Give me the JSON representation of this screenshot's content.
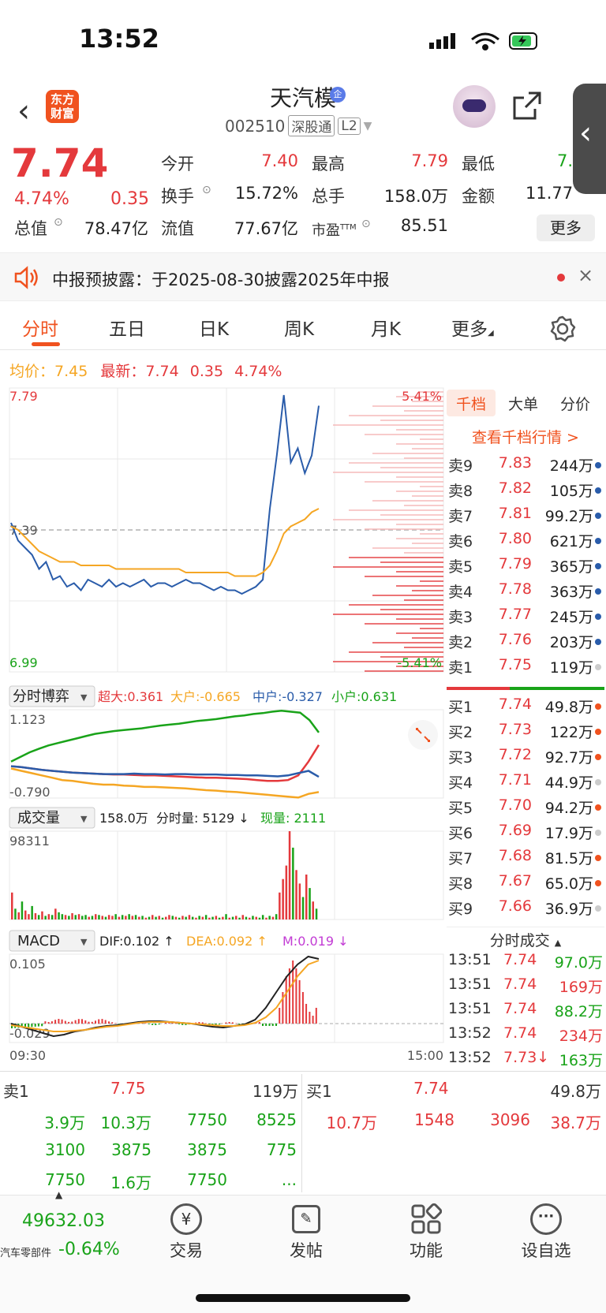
{
  "status_bar": {
    "time": "13:52"
  },
  "header": {
    "logo_text": "东方财富",
    "stock_name": "天汽模",
    "badge": "企",
    "code": "002510",
    "tag1": "深股通",
    "tag2": "L2"
  },
  "quote": {
    "price": "7.74",
    "change_pct": "4.74%",
    "change": "0.35",
    "fields": [
      {
        "label": "今开",
        "value": "7.40",
        "color": "red"
      },
      {
        "label": "最高",
        "value": "7.79",
        "color": "red"
      },
      {
        "label": "最低",
        "value": "7.",
        "color": "green"
      },
      {
        "label": "换手",
        "value": "15.72%",
        "color": "black"
      },
      {
        "label": "总手",
        "value": "158.0万",
        "color": "black"
      },
      {
        "label": "金额",
        "value": "11.77",
        "color": "black"
      },
      {
        "label": "总值",
        "value": "78.47亿",
        "color": "black"
      },
      {
        "label": "流值",
        "value": "77.67亿",
        "color": "black"
      },
      {
        "label": "市盈",
        "sup": "TTM",
        "value": "85.51",
        "color": "black"
      }
    ],
    "more_label": "更多"
  },
  "notice": {
    "text": "中报预披露：于2025-08-30披露2025年中报"
  },
  "tabs": [
    {
      "label": "分时",
      "active": true
    },
    {
      "label": "五日"
    },
    {
      "label": "日K"
    },
    {
      "label": "周K"
    },
    {
      "label": "月K"
    },
    {
      "label": "更多"
    }
  ],
  "avg_row": {
    "avg_label": "均价：",
    "avg_value": "7.45",
    "last_label": "最新：",
    "last_value": "7.74",
    "change": "0.35",
    "change_pct": "4.74%"
  },
  "chart_data": [
    {
      "type": "line",
      "title": "分时",
      "y_max_label": "7.79",
      "y_min_label": "6.99",
      "y_mid_label": "7.39",
      "pct_max_label": "5.41%",
      "pct_min_label": "-5.41%",
      "ylim": [
        6.99,
        7.79
      ],
      "prev_close": 7.39,
      "series": [
        {
          "color": "#2a5caa",
          "values": [
            7.41,
            7.36,
            7.34,
            7.32,
            7.28,
            7.3,
            7.25,
            7.26,
            7.23,
            7.24,
            7.22,
            7.25,
            7.24,
            7.23,
            7.25,
            7.23,
            7.24,
            7.23,
            7.24,
            7.25,
            7.23,
            7.24,
            7.24,
            7.23,
            7.24,
            7.25,
            7.24,
            7.24,
            7.23,
            7.22,
            7.23,
            7.22,
            7.22,
            7.21,
            7.22,
            7.23,
            7.25,
            7.45,
            7.6,
            7.77,
            7.58,
            7.62,
            7.55,
            7.6,
            7.74
          ]
        },
        {
          "color": "#f5a623",
          "values": [
            7.4,
            7.39,
            7.37,
            7.35,
            7.33,
            7.32,
            7.31,
            7.3,
            7.3,
            7.3,
            7.29,
            7.29,
            7.29,
            7.29,
            7.29,
            7.28,
            7.28,
            7.28,
            7.28,
            7.28,
            7.28,
            7.28,
            7.28,
            7.28,
            7.28,
            7.27,
            7.27,
            7.27,
            7.27,
            7.27,
            7.27,
            7.27,
            7.26,
            7.26,
            7.26,
            7.26,
            7.27,
            7.29,
            7.33,
            7.38,
            7.4,
            7.41,
            7.42,
            7.44,
            7.45
          ]
        }
      ]
    },
    {
      "type": "line",
      "title": "分时博弈",
      "labels": {
        "super": "超大:0.361",
        "large": "大户:-0.665",
        "mid": "中户:-0.327",
        "small": "小户:0.631"
      },
      "y_max_label": "1.123",
      "y_min_label": "-0.790",
      "ylim": [
        -0.79,
        1.123
      ],
      "series": [
        {
          "name": "小户",
          "color": "#19a319",
          "values": [
            0.0,
            0.1,
            0.2,
            0.28,
            0.35,
            0.4,
            0.45,
            0.5,
            0.55,
            0.6,
            0.63,
            0.66,
            0.68,
            0.7,
            0.72,
            0.75,
            0.78,
            0.8,
            0.82,
            0.85,
            0.88,
            0.9,
            0.92,
            0.95,
            0.98,
            1.0,
            1.03,
            1.05,
            1.08,
            1.1,
            1.08,
            1.06,
            0.9,
            0.63
          ]
        },
        {
          "name": "超大",
          "color": "#e4393c",
          "values": [
            -0.1,
            -0.12,
            -0.15,
            -0.18,
            -0.2,
            -0.22,
            -0.24,
            -0.25,
            -0.26,
            -0.27,
            -0.28,
            -0.28,
            -0.29,
            -0.3,
            -0.3,
            -0.31,
            -0.32,
            -0.33,
            -0.34,
            -0.35,
            -0.35,
            -0.36,
            -0.37,
            -0.38,
            -0.4,
            -0.42,
            -0.42,
            -0.4,
            -0.3,
            0.0,
            0.36
          ]
        },
        {
          "name": "中户",
          "color": "#2a5caa",
          "values": [
            -0.1,
            -0.12,
            -0.15,
            -0.18,
            -0.2,
            -0.22,
            -0.24,
            -0.25,
            -0.26,
            -0.27,
            -0.27,
            -0.27,
            -0.26,
            -0.27,
            -0.27,
            -0.28,
            -0.27,
            -0.27,
            -0.28,
            -0.28,
            -0.28,
            -0.29,
            -0.29,
            -0.3,
            -0.3,
            -0.31,
            -0.32,
            -0.3,
            -0.25,
            -0.2,
            -0.33
          ]
        },
        {
          "name": "大户",
          "color": "#f5a623",
          "values": [
            -0.15,
            -0.2,
            -0.25,
            -0.3,
            -0.35,
            -0.4,
            -0.42,
            -0.45,
            -0.48,
            -0.5,
            -0.5,
            -0.52,
            -0.53,
            -0.55,
            -0.55,
            -0.56,
            -0.57,
            -0.58,
            -0.6,
            -0.62,
            -0.63,
            -0.65,
            -0.66,
            -0.68,
            -0.7,
            -0.72,
            -0.74,
            -0.76,
            -0.78,
            -0.7,
            -0.66
          ]
        }
      ]
    },
    {
      "type": "bar",
      "title": "成交量",
      "labels": {
        "total": "158.0万",
        "minute": "分时量: 5129 ↓",
        "current": "现量: 2111"
      },
      "y_max_label": "98311",
      "ylim": [
        0,
        98311
      ],
      "values": [
        30000,
        12000,
        8000,
        20000,
        10000,
        6000,
        15000,
        7000,
        5000,
        9000,
        4000,
        6000,
        5000,
        12000,
        8000,
        6000,
        5000,
        4000,
        7000,
        5000,
        6000,
        4000,
        5000,
        3000,
        4000,
        6000,
        5000,
        4000,
        3000,
        5000,
        4000,
        6000,
        3000,
        5000,
        4000,
        6000,
        4000,
        5000,
        3000,
        4000,
        2000,
        3000,
        5000,
        3000,
        4000,
        2000,
        3000,
        5000,
        4000,
        3000,
        2000,
        4000,
        3000,
        5000,
        3000,
        2000,
        4000,
        3000,
        5000,
        2000,
        3000,
        4000,
        2000,
        3000,
        6000,
        2000,
        3000,
        4000,
        2000,
        5000,
        3000,
        2000,
        4000,
        3000,
        2000,
        5000,
        2000,
        4000,
        3000,
        6000,
        30000,
        45000,
        60000,
        98311,
        80000,
        55000,
        40000,
        25000,
        50000,
        35000,
        20000,
        12000
      ],
      "colors": [
        "r",
        "g",
        "r",
        "g",
        "r",
        "r",
        "g",
        "r",
        "g",
        "r",
        "g",
        "r",
        "g",
        "r",
        "g",
        "g",
        "r",
        "g",
        "r",
        "g",
        "r",
        "g",
        "g",
        "r",
        "g",
        "r",
        "g",
        "r",
        "g",
        "r",
        "r",
        "g",
        "r",
        "g",
        "r",
        "g",
        "r",
        "g",
        "r",
        "g",
        "r",
        "g",
        "r",
        "g",
        "r",
        "g",
        "r",
        "r",
        "g",
        "r",
        "g",
        "r",
        "g",
        "r",
        "g",
        "r",
        "g",
        "r",
        "g",
        "r",
        "g",
        "r",
        "g",
        "r",
        "g",
        "r",
        "g",
        "r",
        "g",
        "r",
        "g",
        "r",
        "g",
        "r",
        "g",
        "g",
        "r",
        "g",
        "r",
        "g",
        "r",
        "r",
        "r",
        "r",
        "g",
        "r",
        "r",
        "g",
        "r",
        "g",
        "r",
        "g"
      ]
    },
    {
      "type": "bar",
      "title": "MACD",
      "labels": {
        "dif": "DIF:0.102 ↑",
        "dea": "DEA:0.092 ↑",
        "m": "M:0.019 ↓"
      },
      "y_max_label": "0.105",
      "y_min_label": "-0.029",
      "ylim": [
        -0.029,
        0.105
      ],
      "x_start": "09:30",
      "x_end": "15:00"
    }
  ],
  "order_book": {
    "tabs": [
      "千档",
      "大单",
      "分价"
    ],
    "link": "查看千档行情 >",
    "asks": [
      {
        "label": "卖9",
        "price": "7.83",
        "vol": "244万"
      },
      {
        "label": "卖8",
        "price": "7.82",
        "vol": "105万"
      },
      {
        "label": "卖7",
        "price": "7.81",
        "vol": "99.2万"
      },
      {
        "label": "卖6",
        "price": "7.80",
        "vol": "621万"
      },
      {
        "label": "卖5",
        "price": "7.79",
        "vol": "365万"
      },
      {
        "label": "卖4",
        "price": "7.78",
        "vol": "363万"
      },
      {
        "label": "卖3",
        "price": "7.77",
        "vol": "245万"
      },
      {
        "label": "卖2",
        "price": "7.76",
        "vol": "203万"
      },
      {
        "label": "卖1",
        "price": "7.75",
        "vol": "119万"
      }
    ],
    "bids": [
      {
        "label": "买1",
        "price": "7.74",
        "vol": "49.8万"
      },
      {
        "label": "买2",
        "price": "7.73",
        "vol": "122万"
      },
      {
        "label": "买3",
        "price": "7.72",
        "vol": "92.7万"
      },
      {
        "label": "买4",
        "price": "7.71",
        "vol": "44.9万"
      },
      {
        "label": "买5",
        "price": "7.70",
        "vol": "94.2万"
      },
      {
        "label": "买6",
        "price": "7.69",
        "vol": "17.9万"
      },
      {
        "label": "买7",
        "price": "7.68",
        "vol": "81.5万"
      },
      {
        "label": "买8",
        "price": "7.67",
        "vol": "65.0万"
      },
      {
        "label": "买9",
        "price": "7.66",
        "vol": "36.9万"
      }
    ],
    "trades_title": "分时成交",
    "trades": [
      {
        "time": "13:51",
        "price": "7.74",
        "vol": "97.0万",
        "c": "green"
      },
      {
        "time": "13:51",
        "price": "7.74",
        "vol": "169万",
        "c": "red"
      },
      {
        "time": "13:51",
        "price": "7.74",
        "vol": "88.2万",
        "c": "green"
      },
      {
        "time": "13:52",
        "price": "7.74",
        "vol": "234万",
        "c": "red"
      },
      {
        "time": "13:52",
        "price": "7.73↓",
        "vol": "163万",
        "c": "green"
      }
    ]
  },
  "l2": {
    "sell": {
      "label": "卖1",
      "price": "7.75",
      "vol": "119万",
      "rows": [
        [
          "3.9万",
          "10.3万",
          "7750",
          "8525"
        ],
        [
          "3100",
          "3875",
          "3875",
          "775"
        ],
        [
          "7750",
          "1.6万",
          "7750",
          "..."
        ]
      ]
    },
    "buy": {
      "label": "买1",
      "price": "7.74",
      "vol": "49.8万",
      "rows": [
        [
          "10.7万",
          "1548",
          "3096",
          "38.7万"
        ]
      ]
    }
  },
  "bottom_nav": {
    "index_value": "49632.03",
    "index_name": "汽车零部件",
    "index_pct": "-0.64%",
    "items": [
      {
        "label": "交易"
      },
      {
        "label": "发帖"
      },
      {
        "label": "功能"
      },
      {
        "label": "设自选"
      }
    ]
  }
}
